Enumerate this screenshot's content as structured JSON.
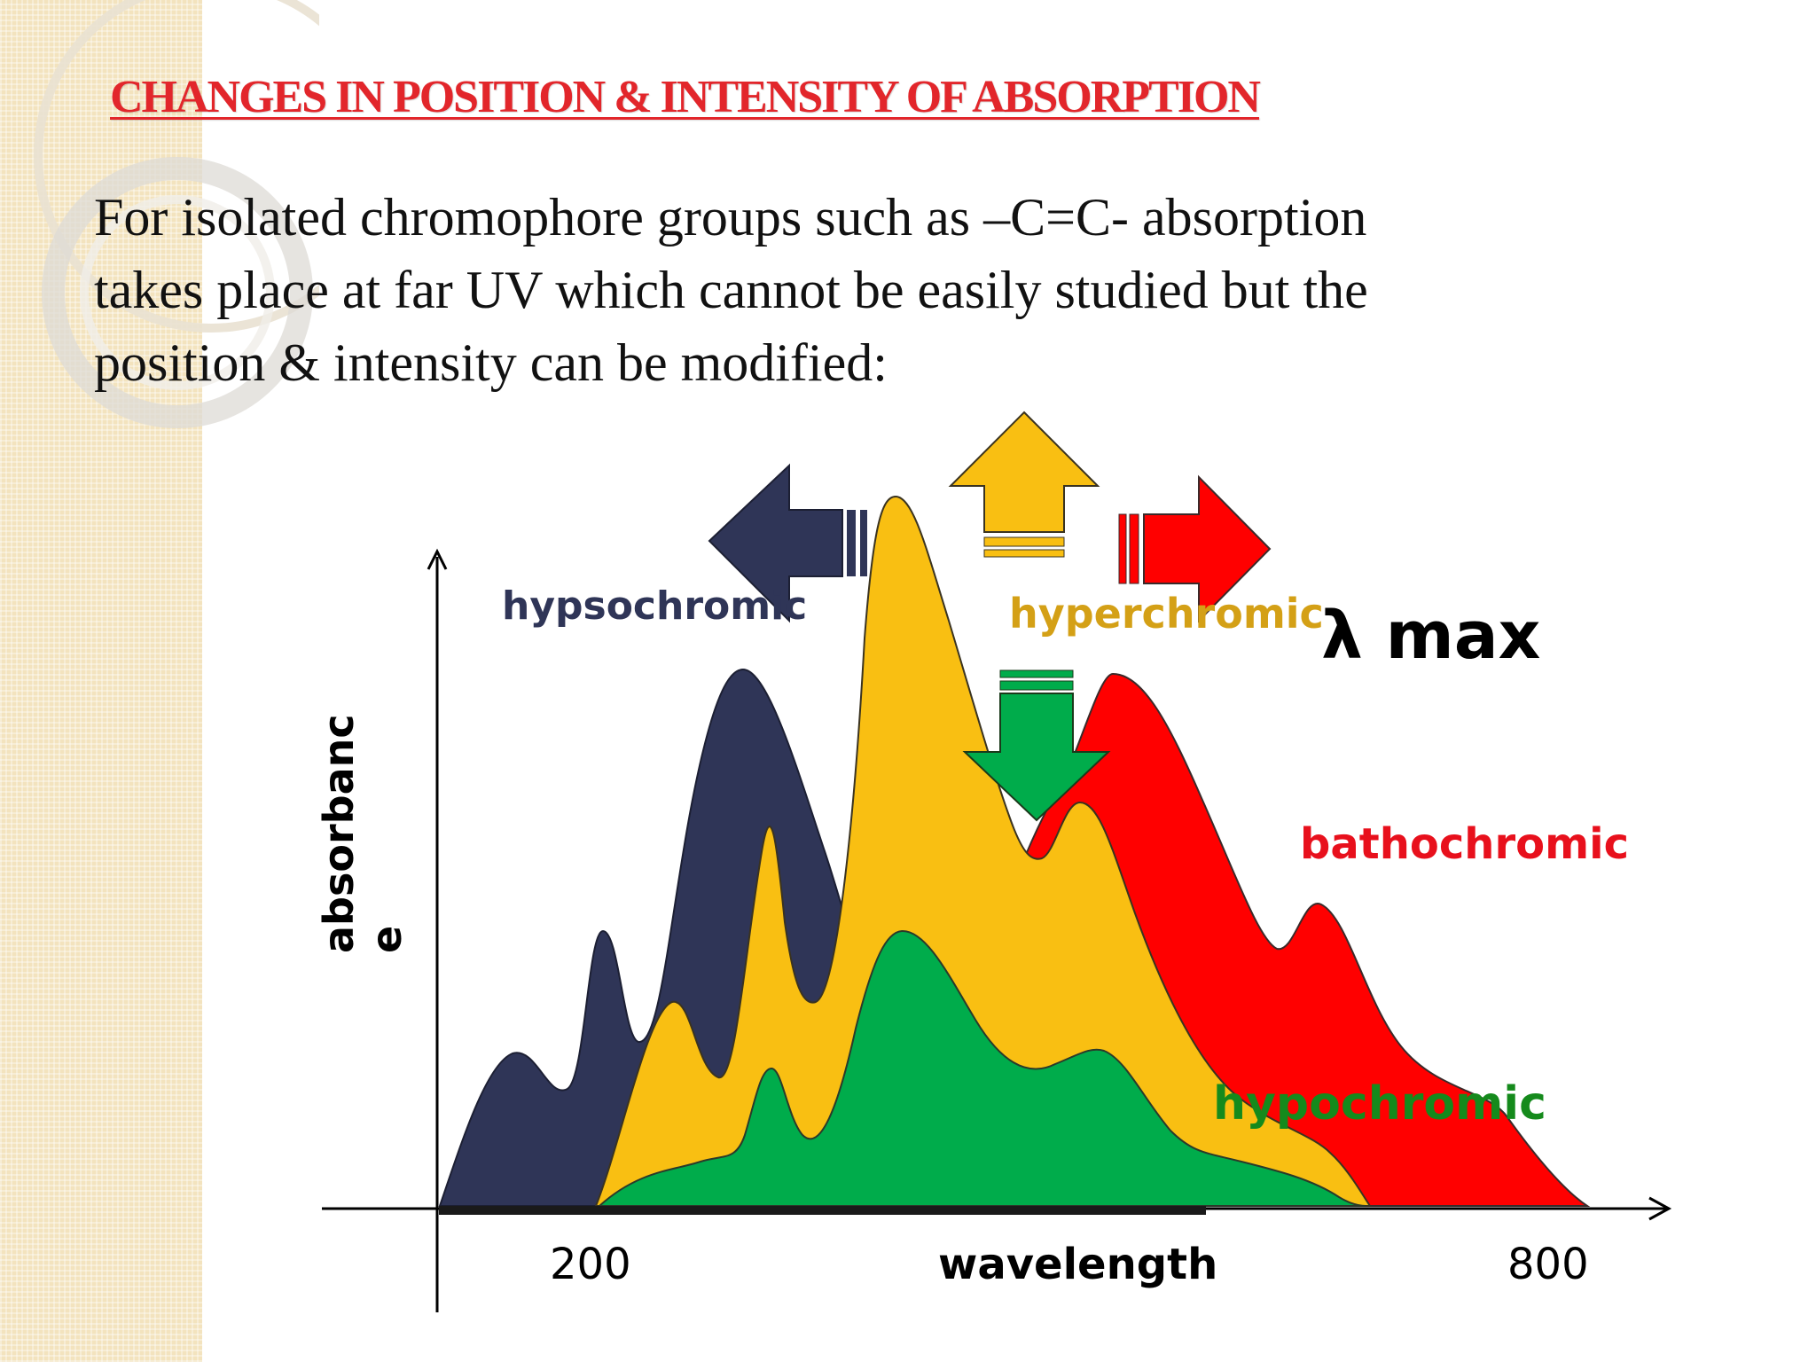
{
  "slide": {
    "title": "CHANGES IN POSITION & INTENSITY OF ABSORPTION",
    "body_lines": [
      "For isolated chromophore groups such as –C=C- absorption",
      "takes place at far UV which cannot be easily studied but the",
      "position & intensity can be modified:"
    ]
  },
  "diagram": {
    "axis": {
      "y_label_line1": "absorbanc",
      "y_label_line2": "e",
      "x_label": "wavelength",
      "x_tick_left": "200",
      "x_tick_right": "800"
    },
    "labels": {
      "hypsochromic": "hypsochromic",
      "hyperchromic": "hyperchromic",
      "lambda_max": "λ max",
      "bathochromic": "bathochromic",
      "hypochromic": "hypochromic"
    },
    "colors": {
      "hypsochromic": "#2f3557",
      "hyperchromic": "#f9bf12",
      "hyperchromic_text": "#d4a016",
      "bathochromic": "#ff0000",
      "bathochromic_text": "#e8101c",
      "hypochromic": "#00ac4b",
      "hypochromic_text": "#158a1c",
      "title": "#e2262b"
    },
    "arrows": [
      "left-arrow-icon",
      "up-arrow-icon",
      "right-arrow-icon",
      "down-arrow-icon"
    ]
  }
}
